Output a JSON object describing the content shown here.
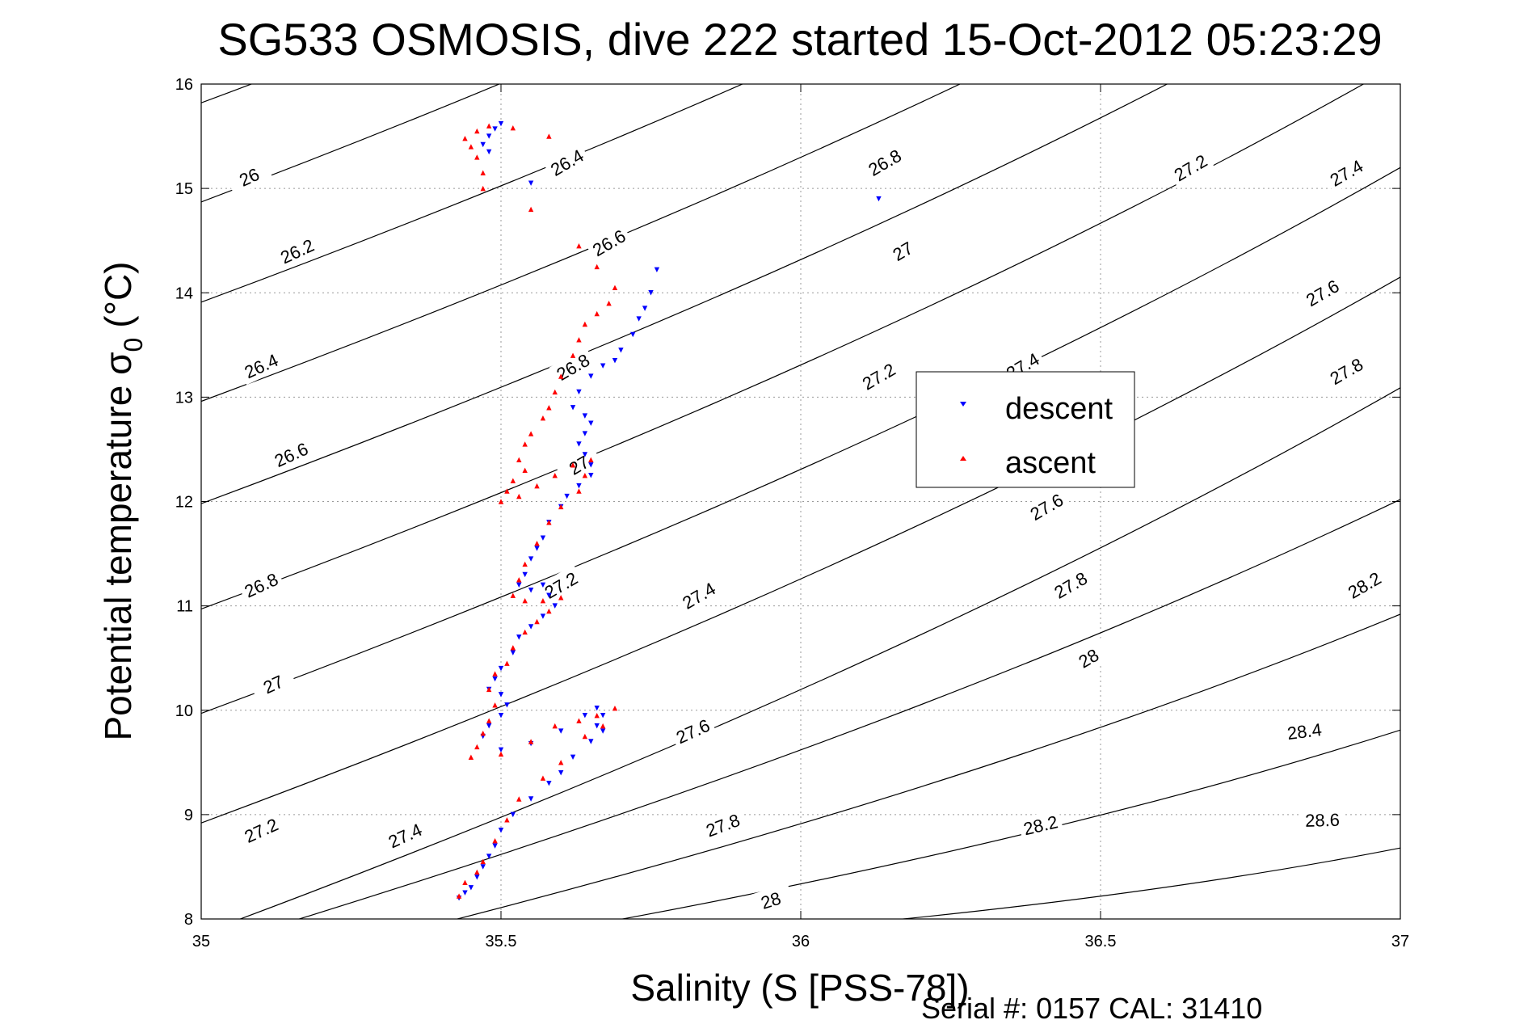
{
  "chart_data": {
    "type": "scatter",
    "title": "SG533 OSMOSIS, dive 222 started 15-Oct-2012 05:23:29",
    "xlabel": "Salinity (S [PSS-78])",
    "ylabel_main": "Potential temperature σ",
    "ylabel_sub": "0",
    "ylabel_unit": "(°C)",
    "footer": "Serial #: 0157  CAL: 31410",
    "xlim": [
      35,
      37
    ],
    "ylim": [
      8,
      16
    ],
    "x_ticks": [
      "35",
      "35.5",
      "36",
      "36.5",
      "37"
    ],
    "y_ticks": [
      "8",
      "9",
      "10",
      "11",
      "12",
      "13",
      "14",
      "15",
      "16"
    ],
    "grid": true,
    "legend_position": "center-right",
    "series": [
      {
        "name": "descent",
        "color": "#0000ff",
        "marker": "triangle-down",
        "points": [
          [
            35.5,
            15.62
          ],
          [
            35.49,
            15.57
          ],
          [
            35.48,
            15.5
          ],
          [
            35.47,
            15.42
          ],
          [
            35.48,
            15.35
          ],
          [
            35.55,
            15.05
          ],
          [
            36.13,
            14.9
          ],
          [
            35.76,
            14.22
          ],
          [
            35.75,
            14.0
          ],
          [
            35.74,
            13.85
          ],
          [
            35.73,
            13.75
          ],
          [
            35.72,
            13.6
          ],
          [
            35.7,
            13.45
          ],
          [
            35.69,
            13.35
          ],
          [
            35.67,
            13.3
          ],
          [
            35.65,
            13.2
          ],
          [
            35.63,
            13.05
          ],
          [
            35.62,
            12.9
          ],
          [
            35.64,
            12.82
          ],
          [
            35.65,
            12.75
          ],
          [
            35.64,
            12.65
          ],
          [
            35.63,
            12.55
          ],
          [
            35.64,
            12.45
          ],
          [
            35.65,
            12.35
          ],
          [
            35.65,
            12.25
          ],
          [
            35.63,
            12.15
          ],
          [
            35.61,
            12.05
          ],
          [
            35.6,
            11.95
          ],
          [
            35.58,
            11.8
          ],
          [
            35.57,
            11.65
          ],
          [
            35.56,
            11.55
          ],
          [
            35.55,
            11.45
          ],
          [
            35.54,
            11.3
          ],
          [
            35.53,
            11.2
          ],
          [
            35.55,
            11.15
          ],
          [
            35.57,
            11.2
          ],
          [
            35.58,
            11.1
          ],
          [
            35.59,
            11.0
          ],
          [
            35.57,
            10.9
          ],
          [
            35.55,
            10.8
          ],
          [
            35.53,
            10.7
          ],
          [
            35.52,
            10.55
          ],
          [
            35.5,
            10.4
          ],
          [
            35.49,
            10.3
          ],
          [
            35.48,
            10.2
          ],
          [
            35.5,
            10.15
          ],
          [
            35.51,
            10.05
          ],
          [
            35.5,
            9.95
          ],
          [
            35.48,
            9.85
          ],
          [
            35.47,
            9.75
          ],
          [
            35.5,
            9.62
          ],
          [
            35.55,
            9.68
          ],
          [
            35.6,
            9.8
          ],
          [
            35.64,
            9.95
          ],
          [
            35.66,
            10.02
          ],
          [
            35.67,
            9.95
          ],
          [
            35.66,
            9.85
          ],
          [
            35.67,
            9.8
          ],
          [
            35.65,
            9.7
          ],
          [
            35.62,
            9.55
          ],
          [
            35.6,
            9.4
          ],
          [
            35.58,
            9.3
          ],
          [
            35.55,
            9.15
          ],
          [
            35.52,
            9.0
          ],
          [
            35.5,
            8.85
          ],
          [
            35.49,
            8.7
          ],
          [
            35.48,
            8.6
          ],
          [
            35.47,
            8.5
          ],
          [
            35.46,
            8.4
          ],
          [
            35.45,
            8.3
          ],
          [
            35.44,
            8.25
          ],
          [
            35.43,
            8.2
          ]
        ]
      },
      {
        "name": "ascent",
        "color": "#ff0000",
        "marker": "triangle-up",
        "points": [
          [
            35.44,
            15.48
          ],
          [
            35.45,
            15.4
          ],
          [
            35.46,
            15.3
          ],
          [
            35.47,
            15.15
          ],
          [
            35.47,
            15.0
          ],
          [
            35.46,
            15.55
          ],
          [
            35.48,
            15.6
          ],
          [
            35.52,
            15.58
          ],
          [
            35.58,
            15.5
          ],
          [
            35.55,
            14.8
          ],
          [
            35.63,
            14.45
          ],
          [
            35.66,
            14.25
          ],
          [
            35.69,
            14.05
          ],
          [
            35.68,
            13.9
          ],
          [
            35.66,
            13.8
          ],
          [
            35.64,
            13.7
          ],
          [
            35.63,
            13.55
          ],
          [
            35.62,
            13.4
          ],
          [
            35.6,
            13.2
          ],
          [
            35.59,
            13.05
          ],
          [
            35.58,
            12.9
          ],
          [
            35.57,
            12.8
          ],
          [
            35.55,
            12.65
          ],
          [
            35.54,
            12.55
          ],
          [
            35.53,
            12.4
          ],
          [
            35.54,
            12.3
          ],
          [
            35.52,
            12.2
          ],
          [
            35.51,
            12.1
          ],
          [
            35.5,
            12.0
          ],
          [
            35.53,
            12.05
          ],
          [
            35.56,
            12.15
          ],
          [
            35.59,
            12.25
          ],
          [
            35.62,
            12.35
          ],
          [
            35.65,
            12.4
          ],
          [
            35.64,
            12.25
          ],
          [
            35.63,
            12.1
          ],
          [
            35.6,
            11.95
          ],
          [
            35.58,
            11.8
          ],
          [
            35.56,
            11.6
          ],
          [
            35.54,
            11.4
          ],
          [
            35.53,
            11.25
          ],
          [
            35.52,
            11.1
          ],
          [
            35.54,
            11.05
          ],
          [
            35.57,
            11.05
          ],
          [
            35.6,
            11.08
          ],
          [
            35.58,
            10.95
          ],
          [
            35.56,
            10.85
          ],
          [
            35.54,
            10.75
          ],
          [
            35.52,
            10.6
          ],
          [
            35.51,
            10.45
          ],
          [
            35.49,
            10.35
          ],
          [
            35.48,
            10.2
          ],
          [
            35.49,
            10.05
          ],
          [
            35.48,
            9.9
          ],
          [
            35.47,
            9.78
          ],
          [
            35.46,
            9.65
          ],
          [
            35.45,
            9.55
          ],
          [
            35.5,
            9.58
          ],
          [
            35.55,
            9.7
          ],
          [
            35.59,
            9.85
          ],
          [
            35.63,
            9.9
          ],
          [
            35.66,
            9.95
          ],
          [
            35.69,
            10.02
          ],
          [
            35.67,
            9.85
          ],
          [
            35.64,
            9.75
          ],
          [
            35.6,
            9.5
          ],
          [
            35.57,
            9.35
          ],
          [
            35.53,
            9.15
          ],
          [
            35.51,
            8.95
          ],
          [
            35.49,
            8.75
          ],
          [
            35.47,
            8.55
          ],
          [
            35.46,
            8.45
          ],
          [
            35.44,
            8.35
          ],
          [
            35.43,
            8.22
          ]
        ]
      }
    ],
    "contours": [
      {
        "label": "26",
        "points": [
          [
            35.0,
            15.82
          ],
          [
            36.65,
            20.18
          ]
        ],
        "label_at": [
          35.08,
          15.11
        ]
      },
      {
        "label": "26.2",
        "points": [
          [
            35.0,
            14.87
          ],
          [
            36.85,
            19.8
          ]
        ],
        "label_at": [
          35.16,
          14.4
        ]
      },
      {
        "label": "26.4",
        "points": [
          [
            35.0,
            13.91
          ],
          [
            37.0,
            19.14
          ]
        ],
        "label_at": [
          35.1,
          13.3
        ]
      },
      {
        "label": "26.6",
        "points": [
          [
            35.0,
            12.96
          ],
          [
            37.0,
            18.19
          ]
        ],
        "label_at": [
          35.15,
          12.45
        ]
      },
      {
        "label": "26.8",
        "points": [
          [
            35.0,
            11.98
          ],
          [
            37.0,
            17.21
          ]
        ],
        "label_at": [
          35.1,
          11.2
        ]
      },
      {
        "label": "27",
        "points": [
          [
            35.0,
            10.97
          ],
          [
            37.0,
            16.2
          ]
        ],
        "label_at": [
          35.12,
          10.25
        ]
      },
      {
        "label": "27.2",
        "points": [
          [
            35.0,
            9.97
          ],
          [
            37.0,
            15.2
          ]
        ],
        "label_at": [
          35.1,
          8.85
        ]
      },
      {
        "label": "27.4",
        "points": [
          [
            35.0,
            8.92
          ],
          [
            37.0,
            14.15
          ]
        ],
        "label_at": [
          35.34,
          8.8
        ]
      },
      {
        "label": "27.6",
        "points": [
          [
            35.0,
            7.86
          ],
          [
            37.0,
            13.09
          ]
        ],
        "label_at": [
          35.82,
          9.8
        ]
      },
      {
        "label": "27.8",
        "points": [
          [
            35.05,
            7.8
          ],
          [
            37.0,
            12.02
          ]
        ],
        "label_at": [
          35.87,
          8.9
        ]
      },
      {
        "label": "28",
        "points": [
          [
            35.29,
            7.8
          ],
          [
            37.0,
            10.92
          ]
        ],
        "label_at": [
          35.95,
          8.18
        ]
      },
      {
        "label": "28.2",
        "points": [
          [
            35.51,
            7.8
          ],
          [
            37.0,
            9.81
          ]
        ],
        "label_at": [
          36.4,
          8.9
        ]
      },
      {
        "label": "28.4",
        "points": [
          [
            35.77,
            7.8
          ],
          [
            37.0,
            8.68
          ]
        ],
        "label_at": [
          36.84,
          9.8
        ]
      },
      {
        "label": "28.6",
        "points": [
          [
            36.05,
            7.8
          ],
          [
            37.0,
            7.95
          ]
        ],
        "label_at": [
          36.87,
          8.95
        ]
      }
    ],
    "contour_labels_extra": [
      {
        "label": "26.4",
        "at": [
          35.61,
          15.25
        ]
      },
      {
        "label": "26.6",
        "at": [
          35.68,
          14.48
        ]
      },
      {
        "label": "26.8",
        "at": [
          35.62,
          13.29
        ]
      },
      {
        "label": "26.8",
        "at": [
          36.14,
          15.25
        ]
      },
      {
        "label": "27",
        "at": [
          36.17,
          14.4
        ]
      },
      {
        "label": "27",
        "at": [
          35.63,
          12.35
        ]
      },
      {
        "label": "27.2",
        "at": [
          35.6,
          11.2
        ]
      },
      {
        "label": "27.2",
        "at": [
          36.13,
          13.2
        ]
      },
      {
        "label": "27.2",
        "at": [
          36.65,
          15.2
        ]
      },
      {
        "label": "27.4",
        "at": [
          35.83,
          11.1
        ]
      },
      {
        "label": "27.4",
        "at": [
          36.37,
          13.3
        ]
      },
      {
        "label": "27.4",
        "at": [
          36.91,
          15.15
        ]
      },
      {
        "label": "27.6",
        "at": [
          36.41,
          11.95
        ]
      },
      {
        "label": "27.6",
        "at": [
          36.87,
          14.0
        ]
      },
      {
        "label": "27.8",
        "at": [
          36.45,
          11.2
        ]
      },
      {
        "label": "27.8",
        "at": [
          36.91,
          13.25
        ]
      },
      {
        "label": "28",
        "at": [
          36.48,
          10.5
        ]
      },
      {
        "label": "28.2",
        "at": [
          36.94,
          11.2
        ]
      }
    ]
  }
}
